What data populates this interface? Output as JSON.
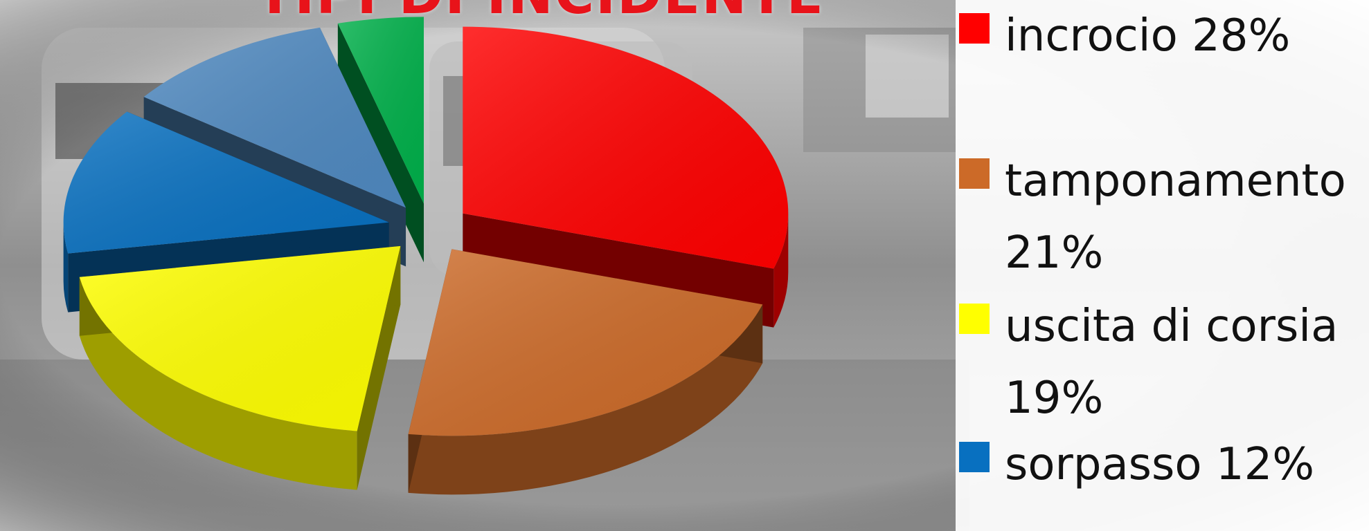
{
  "chart_data": {
    "type": "pie",
    "title": "TIPI DI INCIDENTE",
    "categories": [
      "incrocio",
      "tamponamento",
      "uscita di corsia",
      "sorpasso",
      "",
      ""
    ],
    "values": [
      28,
      21,
      19,
      12,
      10,
      4
    ],
    "colors": [
      "#ff0000",
      "#cc6a28",
      "#ffff00",
      "#0870c0",
      "#4f89c0",
      "#00b04a"
    ],
    "legend": {
      "placement": "right",
      "entries": [
        {
          "label": "incrocio 28%",
          "color": "#ff0000"
        },
        {
          "label": "tamponamento 21%",
          "color": "#cc6a28"
        },
        {
          "label": "uscita di corsia 19%",
          "color": "#ffff00"
        },
        {
          "label": "sorpasso 12%",
          "color": "#0870c0"
        }
      ]
    },
    "style": "3d-exploded"
  }
}
